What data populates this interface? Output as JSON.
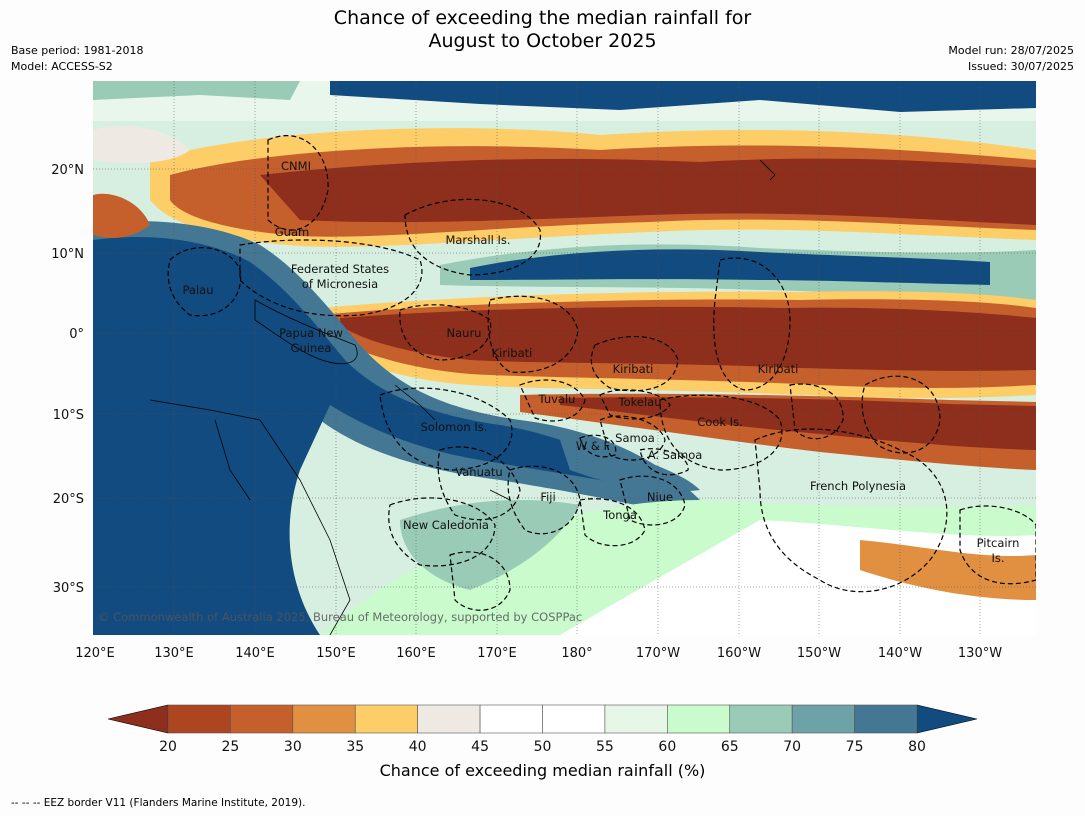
{
  "title": {
    "line1": "Chance of exceeding the median rainfall for",
    "line2": "August to October 2025"
  },
  "meta": {
    "base_period": "Base period: 1981-2018",
    "model": "Model: ACCESS-S2",
    "model_run": "Model run: 28/07/2025",
    "issued": "Issued: 30/07/2025"
  },
  "map": {
    "lon_labels": [
      "120°E",
      "130°E",
      "140°E",
      "150°E",
      "160°E",
      "170°E",
      "180°",
      "170°W",
      "160°W",
      "150°W",
      "140°W",
      "130°W"
    ],
    "lat_labels": [
      "20°N",
      "10°N",
      "0°",
      "10°S",
      "20°S",
      "30°S"
    ],
    "copyright": "© Commonwealth of Australia 2025, Bureau of Meteorology, supported by COSPPac",
    "regions": [
      "CNMI",
      "Guam",
      "Marshall Is.",
      "Federated States",
      "of Micronesia",
      "Palau",
      "Papua New",
      "Guinea",
      "Nauru",
      "Kiribati",
      "Kiribati",
      "Kiribati",
      "Tuvalu",
      "Tokelau",
      "Solomon Is.",
      "Cook Is.",
      "Samoa",
      "W & F",
      "A. Samoa",
      "Vanuatu",
      "Fiji",
      "Niue",
      "French Polynesia",
      "Tonga",
      "New Caledonia",
      "Pitcairn",
      "Is."
    ]
  },
  "colorbar": {
    "ticks": [
      "20",
      "25",
      "30",
      "35",
      "40",
      "45",
      "50",
      "55",
      "60",
      "65",
      "70",
      "75",
      "80"
    ],
    "colors": [
      "#ad4520",
      "#c5602d",
      "#e09040",
      "#fdcd68",
      "#eeeae3",
      "#ffffff",
      "#ffffff",
      "#e7f7e7",
      "#c9fbcc",
      "#99cbb7",
      "#6da2a6",
      "#437794"
    ],
    "low_color": "#8e2f1d",
    "high_color": "#124b80",
    "label": "Chance of exceeding median rainfall (%)"
  },
  "footer": "--  --  -- EEZ border V11 (Flanders Marine Institute, 2019)."
}
